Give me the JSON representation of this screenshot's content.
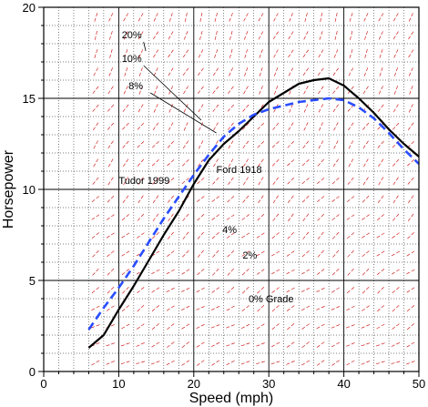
{
  "chart_data": {
    "type": "line",
    "xlabel": "Speed (mph)",
    "ylabel": "Horsepower",
    "xlim": [
      0,
      50
    ],
    "ylim": [
      0,
      20
    ],
    "x_ticks": [
      0,
      10,
      20,
      30,
      40,
      50
    ],
    "y_ticks": [
      0,
      5,
      10,
      15,
      20
    ],
    "x_minor_step": 2,
    "y_minor_step": 1,
    "grid": true,
    "series": [
      {
        "name": "Ford 1918",
        "style": "solid",
        "color": "#000000",
        "x": [
          6,
          8,
          10,
          12,
          14,
          16,
          18,
          20,
          22,
          24,
          26,
          28,
          30,
          32,
          34,
          36,
          38,
          40,
          42,
          44,
          46,
          48,
          50
        ],
        "y": [
          1.3,
          2.0,
          3.4,
          4.7,
          6.1,
          7.5,
          8.8,
          10.3,
          11.6,
          12.5,
          13.2,
          14.0,
          14.8,
          15.3,
          15.8,
          16.0,
          16.1,
          15.7,
          15.0,
          14.2,
          13.3,
          12.5,
          11.8
        ]
      },
      {
        "name": "Tudor 1999",
        "style": "dashed",
        "color": "#2a4dff",
        "x": [
          6,
          8,
          10,
          12,
          14,
          16,
          18,
          20,
          22,
          24,
          26,
          28,
          30,
          32,
          34,
          36,
          38,
          40,
          42,
          44,
          46,
          48,
          50
        ],
        "y": [
          2.3,
          3.5,
          4.6,
          5.8,
          7.1,
          8.4,
          9.6,
          10.8,
          11.9,
          12.9,
          13.6,
          14.1,
          14.4,
          14.6,
          14.8,
          14.9,
          15.0,
          14.9,
          14.5,
          13.9,
          13.1,
          12.2,
          11.4
        ]
      }
    ],
    "annotations": [
      {
        "text": "20%",
        "x": 10.4,
        "y": 18.3,
        "line_to": [
          13.6,
          17.6
        ]
      },
      {
        "text": "10%",
        "x": 10.4,
        "y": 17.0,
        "line_to": [
          21.0,
          13.8
        ]
      },
      {
        "text": "8%",
        "x": 11.3,
        "y": 15.5,
        "line_to": [
          23.0,
          13.1
        ]
      },
      {
        "text": "Ford 1918",
        "x": 23.0,
        "y": 10.9
      },
      {
        "text": "Tudor 1999",
        "x": 10.0,
        "y": 10.3
      },
      {
        "text": "4%",
        "x": 23.8,
        "y": 7.6
      },
      {
        "text": "2%",
        "x": 26.5,
        "y": 6.2
      },
      {
        "text": "0% Grade",
        "x": 27.3,
        "y": 3.8
      }
    ],
    "grade_field_color": "#d42020"
  }
}
